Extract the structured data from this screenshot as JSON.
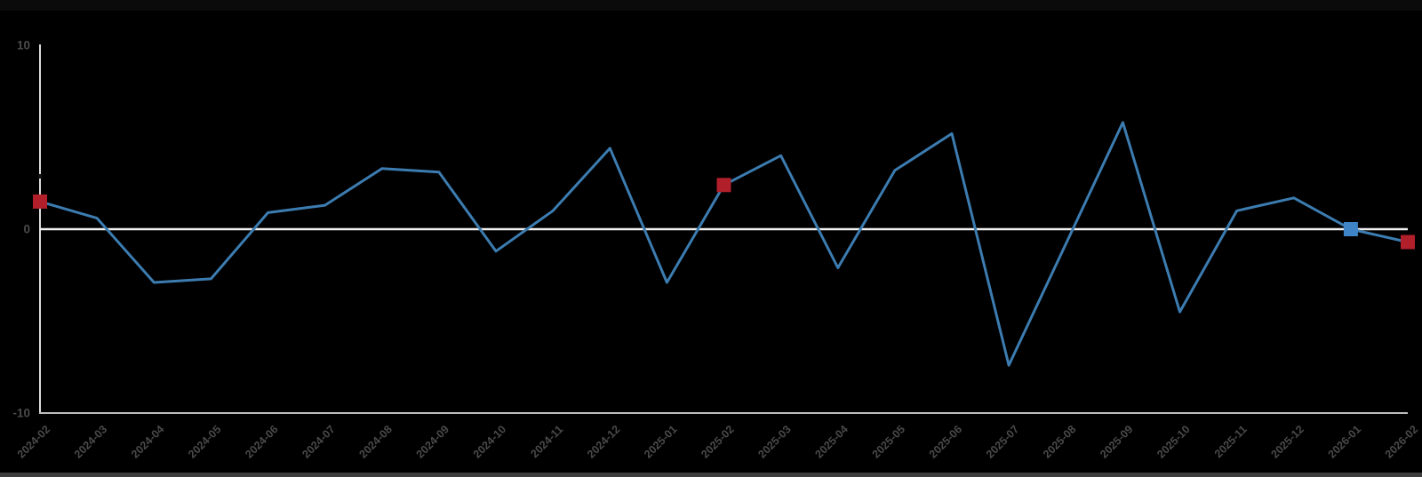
{
  "chart_data": {
    "type": "line",
    "title": "",
    "xlabel": "",
    "ylabel": "",
    "x": [
      "2024-02",
      "2024-03",
      "2024-04",
      "2024-05",
      "2024-06",
      "2024-07",
      "2024-08",
      "2024-09",
      "2024-10",
      "2024-11",
      "2024-12",
      "2025-01",
      "2025-02",
      "2025-03",
      "2025-04",
      "2025-05",
      "2025-06",
      "2025-07",
      "2025-08",
      "2025-09",
      "2025-10",
      "2025-11",
      "2025-12",
      "2026-01",
      "2026-02"
    ],
    "values": [
      1.5,
      0.6,
      -2.9,
      -2.7,
      0.9,
      1.3,
      3.3,
      3.1,
      -1.2,
      1.0,
      4.4,
      -2.9,
      2.4,
      4.0,
      -2.1,
      3.2,
      5.2,
      -7.4,
      -0.8,
      5.8,
      -4.5,
      1.0,
      1.7,
      0.0,
      -0.7
    ],
    "ylim": [
      -10,
      10
    ],
    "yticks": [
      10,
      0,
      -10
    ],
    "grid": false,
    "legend": "none",
    "markers": [
      {
        "index": 0,
        "label": "2024-02",
        "color_key": "marker_red",
        "shape": "square"
      },
      {
        "index": 12,
        "label": "2025-02",
        "color_key": "marker_red",
        "shape": "square"
      },
      {
        "index": 23,
        "label": "2026-01",
        "color_key": "marker_blue",
        "shape": "square"
      },
      {
        "index": 24,
        "label": "2026-02",
        "color_key": "marker_red",
        "shape": "square"
      }
    ],
    "colors": {
      "background": "#000000",
      "line": "#3c7cb0",
      "marker_red": "#b01f2a",
      "marker_blue": "#3e84c6",
      "zero_line": "#f0f0f0",
      "y_axis": "#dcdcdc",
      "bottom_axis": "#bdbdbd",
      "tick_label": "#4a4a4a",
      "bottom_strip": "#3d3d3d"
    }
  }
}
